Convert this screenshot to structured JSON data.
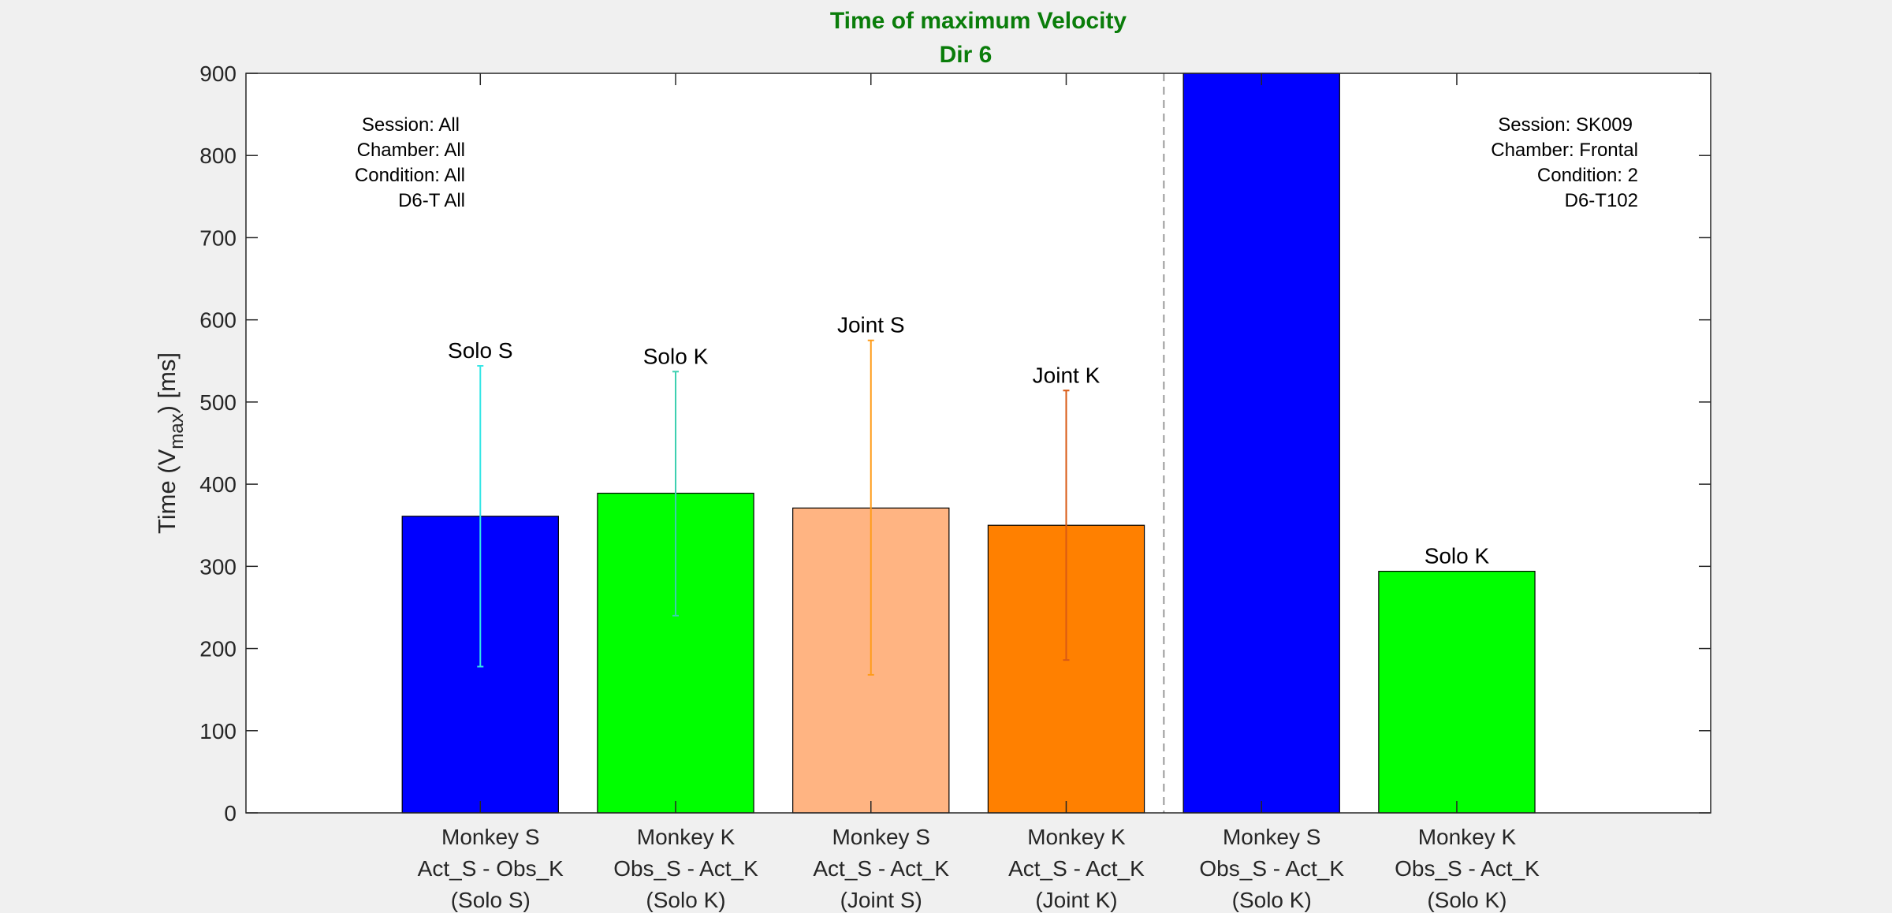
{
  "chart_data": {
    "type": "bar",
    "title": "Time of maximum Velocity",
    "subtitle": "Dir 6",
    "title_color": "#0a7d0a",
    "ylabel": {
      "prefix": "Time (V",
      "subscript": "max",
      "suffix": ") [ms]"
    },
    "xlabel": "",
    "ylim": [
      0,
      900
    ],
    "yticks": [
      "0",
      "100",
      "200",
      "300",
      "400",
      "500",
      "600",
      "700",
      "800",
      "900"
    ],
    "xlim": [
      0,
      7.5
    ],
    "grid": false,
    "bars": [
      {
        "x": 1.2,
        "value": 361,
        "fill": "#0000ff",
        "label": "Solo S",
        "error": {
          "low": 178,
          "high": 544,
          "color": "#33e6e6"
        },
        "tick": [
          "Monkey S",
          "Act_S - Obs_K",
          "(Solo S)"
        ]
      },
      {
        "x": 2.2,
        "value": 389,
        "fill": "#00ff00",
        "label": "Solo K",
        "error": {
          "low": 240,
          "high": 537,
          "color": "#3ccfb0"
        },
        "tick": [
          "Monkey K",
          "Obs_S - Act_K",
          "(Solo K)"
        ]
      },
      {
        "x": 3.2,
        "value": 371,
        "fill": "#ffb482",
        "label": "Joint S",
        "error": {
          "low": 168,
          "high": 575,
          "color": "#ff9c1a"
        },
        "tick": [
          "Monkey S",
          "Act_S - Act_K",
          "(Joint S)"
        ]
      },
      {
        "x": 4.2,
        "value": 350,
        "fill": "#ff8000",
        "label": "Joint K",
        "error": {
          "low": 186,
          "high": 514,
          "color": "#d95a14"
        },
        "tick": [
          "Monkey K",
          "Act_S - Act_K",
          "(Joint K)"
        ]
      },
      {
        "x": 5.2,
        "value": 900,
        "fill": "#0000ff",
        "label": "",
        "error": null,
        "tick": [
          "Monkey S",
          "Obs_S - Act_K",
          "(Solo K)"
        ]
      },
      {
        "x": 6.2,
        "value": 294,
        "fill": "#00ff00",
        "label": "Solo K",
        "error": null,
        "tick": [
          "Monkey K",
          "Obs_S - Act_K",
          "(Solo K)"
        ]
      }
    ],
    "divider_x": 4.7,
    "annotations": [
      {
        "side": "left",
        "lines": [
          "Session: All",
          "Chamber: All",
          "Condition: All",
          "D6-T All"
        ]
      },
      {
        "side": "right",
        "lines": [
          "Session: SK009",
          "Chamber: Frontal",
          "Condition: 2",
          "D6-T102"
        ]
      }
    ]
  }
}
